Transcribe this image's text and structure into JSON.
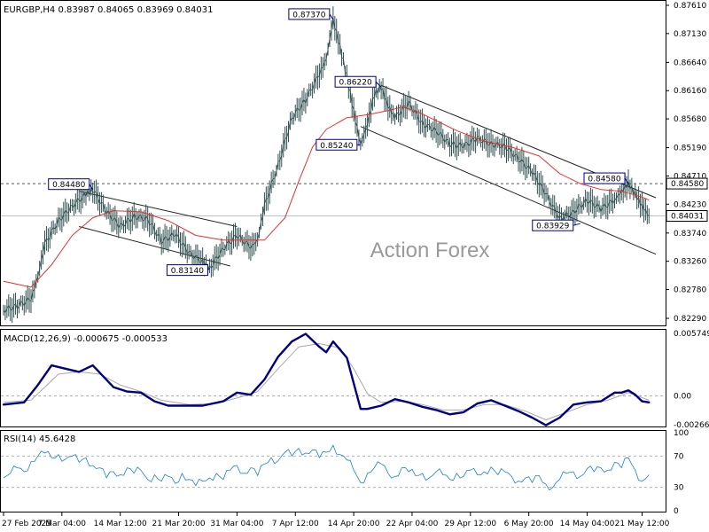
{
  "chart_data": {
    "type": "line",
    "symbol": "EURGBP,H4",
    "ohlc": {
      "open": "0.83987",
      "high": "0.84065",
      "low": "0.83969",
      "close": "0.84031"
    },
    "watermark": "Action Forex",
    "price_axis": {
      "ticks": [
        "0.87610",
        "0.87130",
        "0.86640",
        "0.86160",
        "0.85680",
        "0.85190",
        "0.84710",
        "0.84230",
        "0.83740",
        "0.83260",
        "0.82780",
        "0.82290"
      ],
      "range": [
        0.822,
        0.8764
      ],
      "current_price": "0.84031",
      "level_marker": "0.84580"
    },
    "x_axis_labels": [
      "27 Feb 2025",
      "7 Mar 04:00",
      "14 Mar 12:00",
      "21 Mar 20:00",
      "31 Mar 04:00",
      "7 Apr 12:00",
      "14 Apr 20:00",
      "22 Apr 04:00",
      "29 Apr 12:00",
      "6 May 20:00",
      "14 May 04:00",
      "21 May 12:00"
    ],
    "annotations": [
      "0.87370",
      "0.86220",
      "0.85240",
      "0.84480",
      "0.83140",
      "0.84580",
      "0.83929"
    ],
    "price_series": [
      {
        "t": 0,
        "v": 0.8243
      },
      {
        "t": 2,
        "v": 0.825
      },
      {
        "t": 4,
        "v": 0.8262
      },
      {
        "t": 5,
        "v": 0.83
      },
      {
        "t": 6,
        "v": 0.8355
      },
      {
        "t": 8,
        "v": 0.8395
      },
      {
        "t": 10,
        "v": 0.842
      },
      {
        "t": 12,
        "v": 0.844
      },
      {
        "t": 13,
        "v": 0.8448
      },
      {
        "t": 15,
        "v": 0.841
      },
      {
        "t": 17,
        "v": 0.8385
      },
      {
        "t": 19,
        "v": 0.8402
      },
      {
        "t": 21,
        "v": 0.8398
      },
      {
        "t": 23,
        "v": 0.836
      },
      {
        "t": 25,
        "v": 0.8372
      },
      {
        "t": 27,
        "v": 0.834
      },
      {
        "t": 29,
        "v": 0.8325
      },
      {
        "t": 30,
        "v": 0.8314
      },
      {
        "t": 32,
        "v": 0.8348
      },
      {
        "t": 34,
        "v": 0.837
      },
      {
        "t": 36,
        "v": 0.835
      },
      {
        "t": 37,
        "v": 0.8362
      },
      {
        "t": 38,
        "v": 0.842
      },
      {
        "t": 40,
        "v": 0.849
      },
      {
        "t": 42,
        "v": 0.857
      },
      {
        "t": 44,
        "v": 0.86
      },
      {
        "t": 46,
        "v": 0.8645
      },
      {
        "t": 47,
        "v": 0.867
      },
      {
        "t": 48,
        "v": 0.8737
      },
      {
        "t": 49,
        "v": 0.869
      },
      {
        "t": 50,
        "v": 0.864
      },
      {
        "t": 51,
        "v": 0.858
      },
      {
        "t": 52,
        "v": 0.8524
      },
      {
        "t": 53,
        "v": 0.856
      },
      {
        "t": 54,
        "v": 0.861
      },
      {
        "t": 55,
        "v": 0.8622
      },
      {
        "t": 56,
        "v": 0.859
      },
      {
        "t": 57,
        "v": 0.857
      },
      {
        "t": 59,
        "v": 0.8595
      },
      {
        "t": 61,
        "v": 0.856
      },
      {
        "t": 63,
        "v": 0.8548
      },
      {
        "t": 65,
        "v": 0.8525
      },
      {
        "t": 67,
        "v": 0.8522
      },
      {
        "t": 69,
        "v": 0.8535
      },
      {
        "t": 71,
        "v": 0.8525
      },
      {
        "t": 73,
        "v": 0.8522
      },
      {
        "t": 75,
        "v": 0.85
      },
      {
        "t": 77,
        "v": 0.8478
      },
      {
        "t": 79,
        "v": 0.844
      },
      {
        "t": 81,
        "v": 0.8398
      },
      {
        "t": 83,
        "v": 0.841
      },
      {
        "t": 85,
        "v": 0.843
      },
      {
        "t": 87,
        "v": 0.8415
      },
      {
        "t": 89,
        "v": 0.843
      },
      {
        "t": 90,
        "v": 0.8445
      },
      {
        "t": 91,
        "v": 0.8458
      },
      {
        "t": 92,
        "v": 0.844
      },
      {
        "t": 93,
        "v": 0.842
      },
      {
        "t": 94,
        "v": 0.8403
      }
    ],
    "ma_series": [
      {
        "t": 0,
        "v": 0.8292
      },
      {
        "t": 4,
        "v": 0.8282
      },
      {
        "t": 7,
        "v": 0.832
      },
      {
        "t": 10,
        "v": 0.837
      },
      {
        "t": 13,
        "v": 0.84
      },
      {
        "t": 16,
        "v": 0.8412
      },
      {
        "t": 20,
        "v": 0.841
      },
      {
        "t": 24,
        "v": 0.8395
      },
      {
        "t": 28,
        "v": 0.837
      },
      {
        "t": 32,
        "v": 0.8362
      },
      {
        "t": 36,
        "v": 0.8362
      },
      {
        "t": 38,
        "v": 0.8362
      },
      {
        "t": 41,
        "v": 0.84
      },
      {
        "t": 43,
        "v": 0.8462
      },
      {
        "t": 45,
        "v": 0.852
      },
      {
        "t": 47,
        "v": 0.855
      },
      {
        "t": 50,
        "v": 0.857
      },
      {
        "t": 53,
        "v": 0.8575
      },
      {
        "t": 56,
        "v": 0.8582
      },
      {
        "t": 58,
        "v": 0.8588
      },
      {
        "t": 60,
        "v": 0.8582
      },
      {
        "t": 63,
        "v": 0.8565
      },
      {
        "t": 66,
        "v": 0.8548
      },
      {
        "t": 70,
        "v": 0.853
      },
      {
        "t": 74,
        "v": 0.852
      },
      {
        "t": 78,
        "v": 0.8505
      },
      {
        "t": 81,
        "v": 0.8475
      },
      {
        "t": 84,
        "v": 0.8458
      },
      {
        "t": 87,
        "v": 0.8448
      },
      {
        "t": 90,
        "v": 0.8445
      },
      {
        "t": 93,
        "v": 0.8435
      },
      {
        "t": 94,
        "v": 0.843
      }
    ],
    "channels": [
      {
        "t1": 11,
        "v1": 0.8445,
        "t2": 34,
        "v2": 0.8385
      },
      {
        "t1": 11,
        "v1": 0.8385,
        "t2": 33,
        "v2": 0.8318
      },
      {
        "t1": 55,
        "v1": 0.8625,
        "t2": 95,
        "v2": 0.8434
      },
      {
        "t1": 52,
        "v1": 0.8555,
        "t2": 95,
        "v2": 0.8338
      }
    ],
    "macd": {
      "label": "MACD(12,26,9) -0.000675 -0.000533",
      "ticks": [
        "0.005749",
        "0.00",
        "-0.002663"
      ],
      "range": [
        -0.00273,
        0.0059
      ],
      "macd_line": [
        {
          "t": 0,
          "v": -0.0008
        },
        {
          "t": 3,
          "v": -0.0006
        },
        {
          "t": 5,
          "v": 0.001
        },
        {
          "t": 7,
          "v": 0.0028
        },
        {
          "t": 9,
          "v": 0.0025
        },
        {
          "t": 11,
          "v": 0.0022
        },
        {
          "t": 13,
          "v": 0.0028
        },
        {
          "t": 16,
          "v": 0.0008
        },
        {
          "t": 18,
          "v": 0.0004
        },
        {
          "t": 20,
          "v": 0.0003
        },
        {
          "t": 22,
          "v": -0.0005
        },
        {
          "t": 24,
          "v": -0.0009
        },
        {
          "t": 26,
          "v": -0.0009
        },
        {
          "t": 29,
          "v": -0.0009
        },
        {
          "t": 32,
          "v": -0.0005
        },
        {
          "t": 34,
          "v": 0.0003
        },
        {
          "t": 36,
          "v": 0.0001
        },
        {
          "t": 38,
          "v": 0.0015
        },
        {
          "t": 40,
          "v": 0.0036
        },
        {
          "t": 42,
          "v": 0.005
        },
        {
          "t": 44,
          "v": 0.0057
        },
        {
          "t": 46,
          "v": 0.0045
        },
        {
          "t": 47,
          "v": 0.004
        },
        {
          "t": 48,
          "v": 0.005
        },
        {
          "t": 50,
          "v": 0.0035
        },
        {
          "t": 52,
          "v": -0.0012
        },
        {
          "t": 53,
          "v": -0.0012
        },
        {
          "t": 55,
          "v": -0.0009
        },
        {
          "t": 57,
          "v": -0.0003
        },
        {
          "t": 59,
          "v": -0.0006
        },
        {
          "t": 61,
          "v": -0.001
        },
        {
          "t": 63,
          "v": -0.0013
        },
        {
          "t": 65,
          "v": -0.0017
        },
        {
          "t": 67,
          "v": -0.0015
        },
        {
          "t": 69,
          "v": -0.0007
        },
        {
          "t": 71,
          "v": -0.0004
        },
        {
          "t": 73,
          "v": -0.0009
        },
        {
          "t": 75,
          "v": -0.0014
        },
        {
          "t": 77,
          "v": -0.002
        },
        {
          "t": 79,
          "v": -0.0027
        },
        {
          "t": 81,
          "v": -0.002
        },
        {
          "t": 83,
          "v": -0.0008
        },
        {
          "t": 85,
          "v": -0.0006
        },
        {
          "t": 87,
          "v": -0.0005
        },
        {
          "t": 89,
          "v": 0.0003
        },
        {
          "t": 90,
          "v": 0.0003
        },
        {
          "t": 91,
          "v": 0.0005
        },
        {
          "t": 92,
          "v": 0.0001
        },
        {
          "t": 93,
          "v": -0.0005
        },
        {
          "t": 94,
          "v": -0.0006
        }
      ],
      "signal_line": [
        {
          "t": 0,
          "v": -0.0006
        },
        {
          "t": 4,
          "v": -0.0004
        },
        {
          "t": 6,
          "v": 0.0008
        },
        {
          "t": 8,
          "v": 0.002
        },
        {
          "t": 11,
          "v": 0.0022
        },
        {
          "t": 14,
          "v": 0.002
        },
        {
          "t": 17,
          "v": 0.001
        },
        {
          "t": 20,
          "v": 0.0004
        },
        {
          "t": 23,
          "v": -0.0004
        },
        {
          "t": 27,
          "v": -0.0008
        },
        {
          "t": 31,
          "v": -0.0007
        },
        {
          "t": 34,
          "v": -0.0002
        },
        {
          "t": 37,
          "v": 0.0004
        },
        {
          "t": 40,
          "v": 0.0025
        },
        {
          "t": 43,
          "v": 0.0045
        },
        {
          "t": 46,
          "v": 0.0048
        },
        {
          "t": 49,
          "v": 0.0044
        },
        {
          "t": 51,
          "v": 0.0025
        },
        {
          "t": 53,
          "v": 0.0002
        },
        {
          "t": 55,
          "v": -0.0006
        },
        {
          "t": 58,
          "v": -0.0005
        },
        {
          "t": 61,
          "v": -0.0008
        },
        {
          "t": 64,
          "v": -0.0013
        },
        {
          "t": 67,
          "v": -0.0013
        },
        {
          "t": 70,
          "v": -0.0008
        },
        {
          "t": 73,
          "v": -0.0008
        },
        {
          "t": 76,
          "v": -0.0014
        },
        {
          "t": 79,
          "v": -0.0022
        },
        {
          "t": 82,
          "v": -0.0015
        },
        {
          "t": 85,
          "v": -0.0008
        },
        {
          "t": 88,
          "v": -0.0004
        },
        {
          "t": 91,
          "v": 0.0003
        },
        {
          "t": 94,
          "v": -0.0004
        }
      ]
    },
    "rsi": {
      "label": "RSI(14) 45.6428",
      "ticks": [
        "100",
        "70",
        "30",
        "0"
      ],
      "range": [
        0,
        100
      ],
      "values": [
        {
          "t": 0,
          "v": 42
        },
        {
          "t": 1,
          "v": 48
        },
        {
          "t": 2,
          "v": 55
        },
        {
          "t": 3,
          "v": 50
        },
        {
          "t": 4,
          "v": 63
        },
        {
          "t": 5,
          "v": 70
        },
        {
          "t": 6,
          "v": 74
        },
        {
          "t": 7,
          "v": 68
        },
        {
          "t": 8,
          "v": 72
        },
        {
          "t": 9,
          "v": 66
        },
        {
          "t": 10,
          "v": 70
        },
        {
          "t": 11,
          "v": 62
        },
        {
          "t": 12,
          "v": 68
        },
        {
          "t": 13,
          "v": 58
        },
        {
          "t": 14,
          "v": 55
        },
        {
          "t": 15,
          "v": 42
        },
        {
          "t": 16,
          "v": 50
        },
        {
          "t": 17,
          "v": 46
        },
        {
          "t": 18,
          "v": 55
        },
        {
          "t": 19,
          "v": 48
        },
        {
          "t": 20,
          "v": 52
        },
        {
          "t": 21,
          "v": 40
        },
        {
          "t": 22,
          "v": 46
        },
        {
          "t": 23,
          "v": 38
        },
        {
          "t": 24,
          "v": 44
        },
        {
          "t": 25,
          "v": 35
        },
        {
          "t": 26,
          "v": 48
        },
        {
          "t": 27,
          "v": 40
        },
        {
          "t": 28,
          "v": 32
        },
        {
          "t": 29,
          "v": 38
        },
        {
          "t": 30,
          "v": 42
        },
        {
          "t": 31,
          "v": 48
        },
        {
          "t": 32,
          "v": 40
        },
        {
          "t": 33,
          "v": 52
        },
        {
          "t": 34,
          "v": 58
        },
        {
          "t": 35,
          "v": 48
        },
        {
          "t": 36,
          "v": 55
        },
        {
          "t": 37,
          "v": 45
        },
        {
          "t": 38,
          "v": 60
        },
        {
          "t": 39,
          "v": 68
        },
        {
          "t": 40,
          "v": 64
        },
        {
          "t": 41,
          "v": 75
        },
        {
          "t": 42,
          "v": 70
        },
        {
          "t": 43,
          "v": 80
        },
        {
          "t": 44,
          "v": 74
        },
        {
          "t": 45,
          "v": 78
        },
        {
          "t": 46,
          "v": 68
        },
        {
          "t": 47,
          "v": 75
        },
        {
          "t": 48,
          "v": 84
        },
        {
          "t": 49,
          "v": 72
        },
        {
          "t": 50,
          "v": 65
        },
        {
          "t": 51,
          "v": 52
        },
        {
          "t": 52,
          "v": 36
        },
        {
          "t": 53,
          "v": 48
        },
        {
          "t": 54,
          "v": 55
        },
        {
          "t": 55,
          "v": 60
        },
        {
          "t": 56,
          "v": 48
        },
        {
          "t": 57,
          "v": 44
        },
        {
          "t": 58,
          "v": 55
        },
        {
          "t": 59,
          "v": 50
        },
        {
          "t": 60,
          "v": 45
        },
        {
          "t": 61,
          "v": 48
        },
        {
          "t": 62,
          "v": 42
        },
        {
          "t": 63,
          "v": 50
        },
        {
          "t": 64,
          "v": 46
        },
        {
          "t": 65,
          "v": 40
        },
        {
          "t": 66,
          "v": 48
        },
        {
          "t": 67,
          "v": 44
        },
        {
          "t": 68,
          "v": 52
        },
        {
          "t": 69,
          "v": 46
        },
        {
          "t": 70,
          "v": 50
        },
        {
          "t": 71,
          "v": 56
        },
        {
          "t": 72,
          "v": 46
        },
        {
          "t": 73,
          "v": 50
        },
        {
          "t": 74,
          "v": 44
        },
        {
          "t": 75,
          "v": 38
        },
        {
          "t": 76,
          "v": 42
        },
        {
          "t": 77,
          "v": 36
        },
        {
          "t": 78,
          "v": 45
        },
        {
          "t": 79,
          "v": 34
        },
        {
          "t": 80,
          "v": 30
        },
        {
          "t": 81,
          "v": 40
        },
        {
          "t": 82,
          "v": 48
        },
        {
          "t": 83,
          "v": 50
        },
        {
          "t": 84,
          "v": 44
        },
        {
          "t": 85,
          "v": 54
        },
        {
          "t": 86,
          "v": 50
        },
        {
          "t": 87,
          "v": 55
        },
        {
          "t": 88,
          "v": 52
        },
        {
          "t": 89,
          "v": 62
        },
        {
          "t": 90,
          "v": 55
        },
        {
          "t": 91,
          "v": 68
        },
        {
          "t": 92,
          "v": 52
        },
        {
          "t": 93,
          "v": 38
        },
        {
          "t": 94,
          "v": 46
        }
      ]
    },
    "colors": {
      "price": "#2f4f4f",
      "ma": "#e53030",
      "channel": "#222222",
      "annotation": "#000080",
      "macd": "#000080",
      "signal": "#a8a8a8",
      "rsi": "#1a7fd6",
      "grid": "#b0b0b0",
      "axis": "#000000"
    }
  }
}
